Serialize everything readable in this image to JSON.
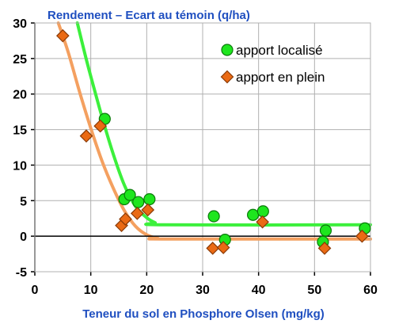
{
  "colors": {
    "title": "#1f4fc0",
    "grid": "#b0b0b0",
    "axis": "#000000",
    "localise_fill": "#1ee61e",
    "localise_stroke": "#0a7a0a",
    "localise_curve": "#3cf03c",
    "plein_fill": "#ea6a14",
    "plein_stroke": "#8a3a06",
    "plein_curve": "#f4a060"
  },
  "chart_data": {
    "type": "scatter",
    "title": "Rendement – Ecart au témoin (q/ha)",
    "xlabel": "Teneur du sol en Phosphore Olsen (mg/kg)",
    "ylabel": "",
    "xlim": [
      0,
      60
    ],
    "ylim": [
      -5,
      30
    ],
    "x_ticks": [
      "0",
      "10",
      "20",
      "30",
      "40",
      "50",
      "60"
    ],
    "y_ticks": [
      "-5",
      "0",
      "5",
      "10",
      "15",
      "20",
      "25",
      "30"
    ],
    "grid": true,
    "legend_position": "top-right",
    "series": [
      {
        "name": "apport localisé",
        "marker": "circle",
        "points": [
          [
            12.5,
            16.5
          ],
          [
            16,
            5.2
          ],
          [
            17,
            5.8
          ],
          [
            18.5,
            4.8
          ],
          [
            20.5,
            5.2
          ],
          [
            32,
            2.8
          ],
          [
            34,
            -0.5
          ],
          [
            39,
            3.0
          ],
          [
            40.8,
            3.5
          ],
          [
            51.5,
            -0.8
          ],
          [
            52,
            0.8
          ],
          [
            59,
            1.1
          ]
        ],
        "curve": [
          [
            7.6,
            30
          ],
          [
            9,
            25.5
          ],
          [
            10,
            22.5
          ],
          [
            12,
            16.8
          ],
          [
            14,
            11.6
          ],
          [
            16,
            7.2
          ],
          [
            18,
            4.2
          ],
          [
            20,
            2.6
          ],
          [
            21.5,
            1.9
          ],
          [
            23,
            1.6
          ],
          [
            60,
            1.6
          ]
        ]
      },
      {
        "name": "apport en plein",
        "marker": "diamond",
        "points": [
          [
            5,
            28.2
          ],
          [
            9.2,
            14.1
          ],
          [
            11.7,
            15.5
          ],
          [
            15.5,
            1.5
          ],
          [
            16.2,
            2.4
          ],
          [
            18.3,
            3.2
          ],
          [
            20.2,
            3.7
          ],
          [
            31.8,
            -1.7
          ],
          [
            33.7,
            -1.6
          ],
          [
            40.7,
            2.0
          ],
          [
            51.8,
            -1.7
          ],
          [
            58.5,
            0.0
          ]
        ],
        "curve": [
          [
            4.2,
            30
          ],
          [
            6,
            25.8
          ],
          [
            8,
            20.3
          ],
          [
            10,
            15.2
          ],
          [
            12,
            10.6
          ],
          [
            14,
            6.8
          ],
          [
            16,
            3.6
          ],
          [
            18,
            1.4
          ],
          [
            20,
            0.2
          ],
          [
            22,
            -0.3
          ],
          [
            23.5,
            -0.4
          ],
          [
            60,
            -0.4
          ]
        ]
      }
    ]
  }
}
